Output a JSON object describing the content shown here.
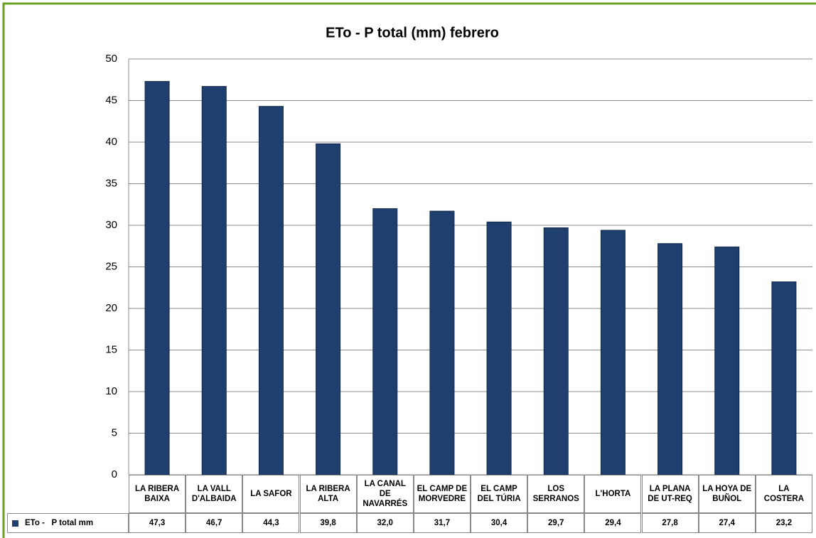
{
  "chart_data": {
    "type": "bar",
    "title": "ETo - P total (mm) febrero",
    "categories": [
      "LA RIBERA BAIXA",
      "LA VALL D'ALBAIDA",
      "LA SAFOR",
      "LA RIBERA ALTA",
      "LA CANAL DE NAVARRÉS",
      "EL CAMP DE MORVEDRE",
      "EL CAMP DEL TÚRIA",
      "LOS SERRANOS",
      "L'HORTA",
      "LA PLANA DE UT-REQ",
      "LA HOYA DE BUÑOL",
      "LA COSTERA"
    ],
    "series": [
      {
        "name": "ETo -   P total mm",
        "color": "#1f3f6e",
        "values": [
          47.3,
          46.7,
          44.3,
          39.8,
          32.0,
          31.7,
          30.4,
          29.7,
          29.4,
          27.8,
          27.4,
          23.2
        ],
        "value_labels": [
          "47,3",
          "46,7",
          "44,3",
          "39,8",
          "32,0",
          "31,7",
          "30,4",
          "29,7",
          "29,4",
          "27,8",
          "27,4",
          "23,2"
        ]
      }
    ],
    "ylim": [
      0,
      50
    ],
    "yticks": [
      0,
      5,
      10,
      15,
      20,
      25,
      30,
      35,
      40,
      45,
      50
    ],
    "grid": true
  }
}
